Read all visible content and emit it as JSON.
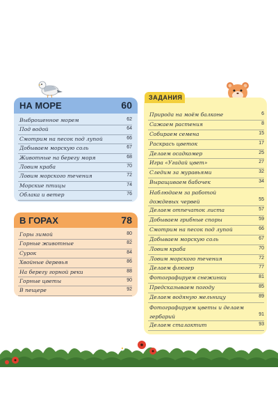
{
  "sea": {
    "title": "НА МОРЕ",
    "page": "60",
    "items": [
      {
        "label": "Выброшенное морем",
        "page": "62"
      },
      {
        "label": "Под водой",
        "page": "64"
      },
      {
        "label": "Смотрим на песок под лупой",
        "page": "66"
      },
      {
        "label": "Добываем морскую соль",
        "page": "67"
      },
      {
        "label": "Животные на берегу моря",
        "page": "68"
      },
      {
        "label": "Ловим краба",
        "page": "70"
      },
      {
        "label": "Ловим морского течения",
        "page": "72"
      },
      {
        "label": "Морские птицы",
        "page": "74"
      },
      {
        "label": "Облака и ветер",
        "page": "76"
      }
    ]
  },
  "mountains": {
    "title": "В ГОРАХ",
    "page": "78",
    "items": [
      {
        "label": "Горы зимой",
        "page": "80"
      },
      {
        "label": "Горные животные",
        "page": "82"
      },
      {
        "label": "Сурок",
        "page": "84"
      },
      {
        "label": "Хвойные деревья",
        "page": "86"
      },
      {
        "label": "На берегу горной реки",
        "page": "88"
      },
      {
        "label": "Горные цветы",
        "page": "90"
      },
      {
        "label": "В пещере",
        "page": "92"
      }
    ]
  },
  "tasks": {
    "title": "ЗАДАНИЯ",
    "items": [
      {
        "label": "Природа на моём балконе",
        "page": "6"
      },
      {
        "label": "Сажаем растения",
        "page": "8"
      },
      {
        "label": "Собираем семена",
        "page": "15"
      },
      {
        "label": "Раскрась цветок",
        "page": "17"
      },
      {
        "label": "Делаем осадкомер",
        "page": "25"
      },
      {
        "label": "Игра «Угадай цвет»",
        "page": "27"
      },
      {
        "label": "Следим за муравьями",
        "page": "32"
      },
      {
        "label": "Выращиваем бабочек",
        "page": "34"
      },
      {
        "label": "Наблюдаем за работой дождевых червей",
        "page": "55"
      },
      {
        "label": "Делаем отпечаток листа",
        "page": "57"
      },
      {
        "label": "Добываем грибные споры",
        "page": "59"
      },
      {
        "label": "Смотрим на песок под лупой",
        "page": "66"
      },
      {
        "label": "Добываем морскую соль",
        "page": "67"
      },
      {
        "label": "Ловим краба",
        "page": "70"
      },
      {
        "label": "Ловим морского течения",
        "page": "72"
      },
      {
        "label": "Делаем флюгер",
        "page": "77"
      },
      {
        "label": "Фотографируем снежинки",
        "page": "81"
      },
      {
        "label": "Предсказываем погоду",
        "page": "85"
      },
      {
        "label": "Делаем водяную мельницу",
        "page": "89"
      },
      {
        "label": "Фотографируем цветы и делаем гербарий",
        "page": "91"
      },
      {
        "label": "Делаем сталактит",
        "page": "93"
      }
    ]
  },
  "colors": {
    "sea_header": "#8fb6e4",
    "sea_body": "#dbe9f6",
    "mountains_header": "#f4a65a",
    "mountains_body": "#fbe2c6",
    "tasks_header": "#f3cf3c",
    "tasks_body": "#fdf4b3"
  },
  "decorations": [
    "seagull-illustration",
    "hamster-illustration",
    "grass-and-poppies-illustration"
  ]
}
